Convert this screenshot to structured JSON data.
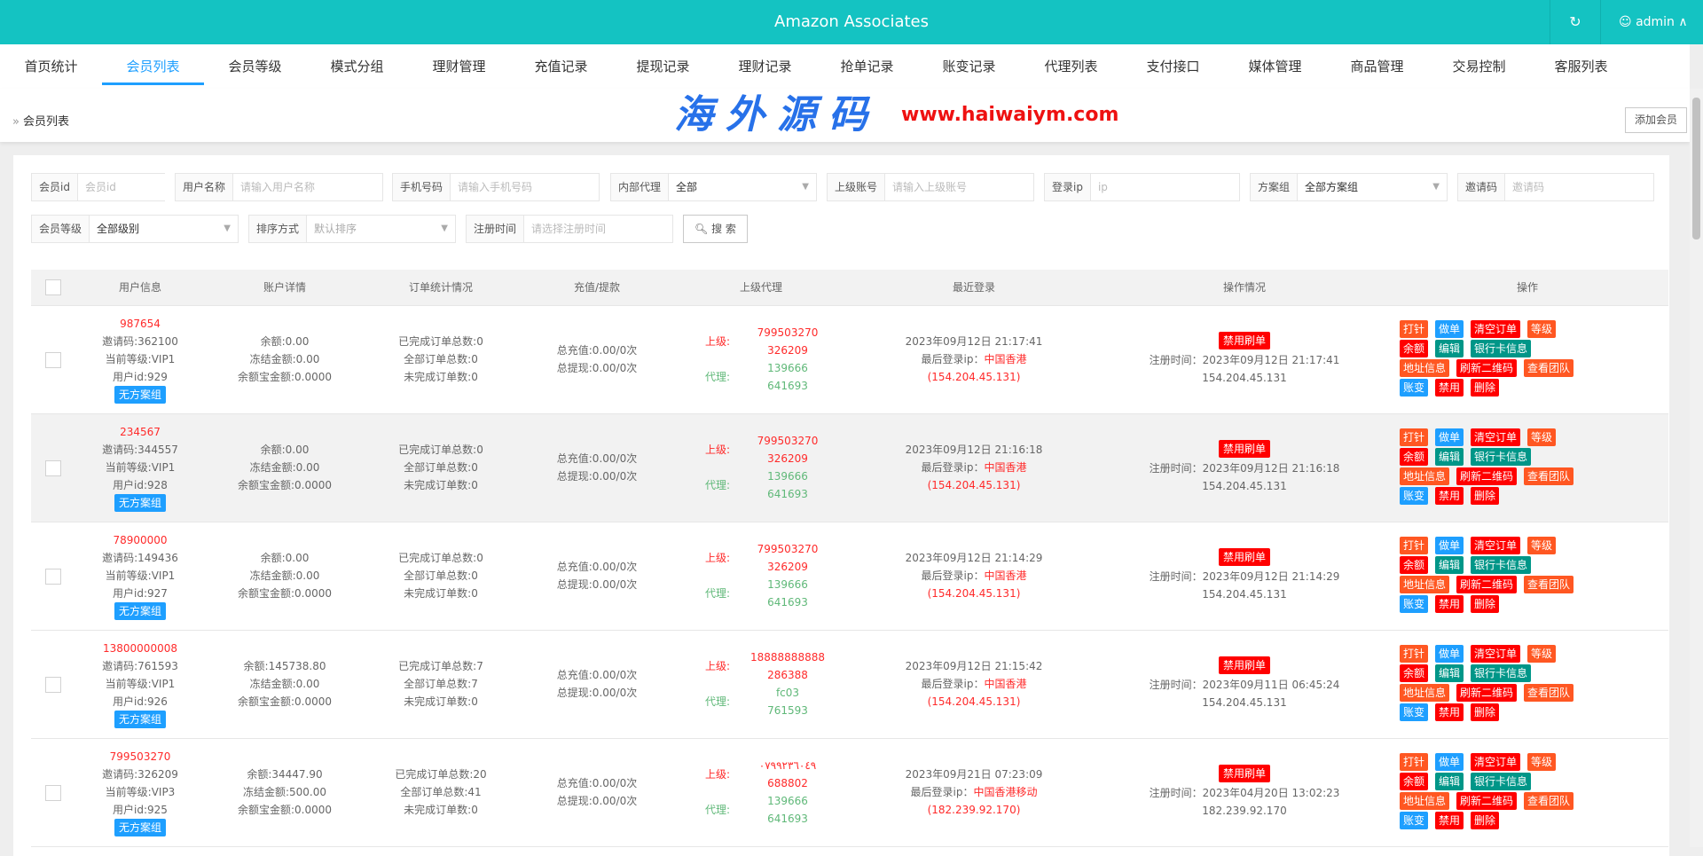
{
  "header": {
    "title": "Amazon Associates",
    "refresh_icon": "refresh-icon",
    "user": "admin"
  },
  "nav": {
    "tabs": [
      "首页统计",
      "会员列表",
      "会员等级",
      "模式分组",
      "理财管理",
      "充值记录",
      "提现记录",
      "理财记录",
      "抢单记录",
      "账变记录",
      "代理列表",
      "支付接口",
      "媒体管理",
      "商品管理",
      "交易控制",
      "客服列表"
    ],
    "active": 1
  },
  "breadcrumb": {
    "current": "会员列表"
  },
  "add_button": "添加会员",
  "filters": {
    "member_id": {
      "label": "会员id",
      "placeholder": "会员id"
    },
    "username": {
      "label": "用户名称",
      "placeholder": "请输入用户名称"
    },
    "phone": {
      "label": "手机号码",
      "placeholder": "请输入手机号码"
    },
    "internal_agent": {
      "label": "内部代理",
      "value": "全部"
    },
    "parent_account": {
      "label": "上级账号",
      "placeholder": "请输入上级账号"
    },
    "login_ip": {
      "label": "登录ip",
      "placeholder": "ip"
    },
    "plan_group": {
      "label": "方案组",
      "value": "全部方案组"
    },
    "invite_code": {
      "label": "邀请码",
      "placeholder": "邀请码"
    },
    "level": {
      "label": "会员等级",
      "value": "全部级别"
    },
    "sort": {
      "label": "排序方式",
      "value": "默认排序"
    },
    "reg_time": {
      "label": "注册时间",
      "placeholder": "请选择注册时间"
    },
    "search": "搜 索"
  },
  "table": {
    "headers": [
      "用户信息",
      "账户详情",
      "订单统计情况",
      "充值/提款",
      "上级代理",
      "最近登录",
      "操作情况",
      "操作"
    ],
    "agent_labels": {
      "parent": "上级:",
      "agent": "代理:"
    },
    "login_ip_label": "最后登录ip：",
    "reg_label": "注册时间：",
    "ban_label": "禁用刷单",
    "group_badge": "无方案组",
    "actions": [
      [
        {
          "label": "打针",
          "color": "#ff5722"
        },
        {
          "label": "做单",
          "color": "#1e9fff"
        },
        {
          "label": "清空订单",
          "color": "#ff0000"
        },
        {
          "label": "等级",
          "color": "#ff5722"
        }
      ],
      [
        {
          "label": "余额",
          "color": "#ff0000"
        },
        {
          "label": "编辑",
          "color": "#009688"
        },
        {
          "label": "银行卡信息",
          "color": "#009688"
        }
      ],
      [
        {
          "label": "地址信息",
          "color": "#ff5722"
        },
        {
          "label": "刷新二维码",
          "color": "#ff0000"
        },
        {
          "label": "查看团队",
          "color": "#ff5722"
        }
      ],
      [
        {
          "label": "账变",
          "color": "#1e9fff"
        },
        {
          "label": "禁用",
          "color": "#ff0000"
        },
        {
          "label": "删除",
          "color": "#ff0000"
        }
      ]
    ],
    "rows": [
      {
        "account": "987654",
        "invite": "邀请码:362100",
        "level": "当前等级:VIP1",
        "uid": "用户id:929",
        "balance": "余额:0.00",
        "frozen": "冻结金额:0.00",
        "yeb": "余额宝金额:0.0000",
        "done": "已完成订单总数:0",
        "total": "全部订单总数:0",
        "undone": "未完成订单数:0",
        "recharge": "总充值:0.00/0次",
        "withdraw": "总提现:0.00/0次",
        "p1": "799503270",
        "p2": "326209",
        "a1": "139666",
        "a2": "641693",
        "login_time": "2023年09月12日 21:17:41",
        "login_loc": "中国香港",
        "login_ip": "(154.204.45.131)",
        "reg_time": "2023年09月12日 21:17:41",
        "reg_ip": "154.204.45.131"
      },
      {
        "account": "234567",
        "invite": "邀请码:344557",
        "level": "当前等级:VIP1",
        "uid": "用户id:928",
        "balance": "余额:0.00",
        "frozen": "冻结金额:0.00",
        "yeb": "余额宝金额:0.0000",
        "done": "已完成订单总数:0",
        "total": "全部订单总数:0",
        "undone": "未完成订单数:0",
        "recharge": "总充值:0.00/0次",
        "withdraw": "总提现:0.00/0次",
        "p1": "799503270",
        "p2": "326209",
        "a1": "139666",
        "a2": "641693",
        "login_time": "2023年09月12日 21:16:18",
        "login_loc": "中国香港",
        "login_ip": "(154.204.45.131)",
        "reg_time": "2023年09月12日 21:16:18",
        "reg_ip": "154.204.45.131"
      },
      {
        "account": "78900000",
        "invite": "邀请码:149436",
        "level": "当前等级:VIP1",
        "uid": "用户id:927",
        "balance": "余额:0.00",
        "frozen": "冻结金额:0.00",
        "yeb": "余额宝金额:0.0000",
        "done": "已完成订单总数:0",
        "total": "全部订单总数:0",
        "undone": "未完成订单数:0",
        "recharge": "总充值:0.00/0次",
        "withdraw": "总提现:0.00/0次",
        "p1": "799503270",
        "p2": "326209",
        "a1": "139666",
        "a2": "641693",
        "login_time": "2023年09月12日 21:14:29",
        "login_loc": "中国香港",
        "login_ip": "(154.204.45.131)",
        "reg_time": "2023年09月12日 21:14:29",
        "reg_ip": "154.204.45.131"
      },
      {
        "account": "13800000008",
        "invite": "邀请码:761593",
        "level": "当前等级:VIP1",
        "uid": "用户id:926",
        "balance": "余额:145738.80",
        "frozen": "冻结金额:0.00",
        "yeb": "余额宝金额:0.0000",
        "done": "已完成订单总数:7",
        "total": "全部订单总数:7",
        "undone": "未完成订单数:0",
        "recharge": "总充值:0.00/0次",
        "withdraw": "总提现:0.00/0次",
        "p1": "18888888888",
        "p2": "286388",
        "a1": "fc03",
        "a2": "761593",
        "login_time": "2023年09月12日 21:15:42",
        "login_loc": "中国香港",
        "login_ip": "(154.204.45.131)",
        "reg_time": "2023年09月11日 06:45:24",
        "reg_ip": "154.204.45.131"
      },
      {
        "account": "799503270",
        "invite": "邀请码:326209",
        "level": "当前等级:VIP3",
        "uid": "用户id:925",
        "balance": "余额:34447.90",
        "frozen": "冻结金额:500.00",
        "yeb": "余额宝金额:0.0000",
        "done": "已完成订单总数:20",
        "total": "全部订单总数:41",
        "undone": "未完成订单数:0",
        "recharge": "总充值:0.00/0次",
        "withdraw": "总提现:0.00/0次",
        "p1": "٠٧٩٩٢٣٦٠٤٩",
        "p2": "688802",
        "a1": "139666",
        "a2": "641693",
        "login_time": "2023年09月21日 07:23:09",
        "login_loc": "中国香港移动",
        "login_ip": "(182.239.92.170)",
        "reg_time": "2023年04月20日 13:02:23",
        "reg_ip": "182.239.92.170"
      }
    ],
    "highlighted_row": 1
  },
  "watermark": {
    "cn": "海外源码",
    "url": "www.haiwaiym.com"
  }
}
